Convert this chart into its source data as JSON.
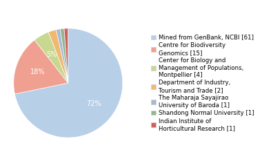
{
  "labels": [
    "Mined from GenBank, NCBI [61]",
    "Centre for Biodiversity\nGenomics [15]",
    "Center for Biology and\nManagement of Populations,\nMontpellier [4]",
    "Department of Industry,\nTourism and Trade [2]",
    "The Maharaja Sayajirao\nUniversity of Baroda [1]",
    "Shandong Normal University [1]",
    "Indian Institute of\nHorticultural Research [1]"
  ],
  "values": [
    61,
    15,
    4,
    2,
    1,
    1,
    1
  ],
  "colors": [
    "#b8cfe8",
    "#f0a090",
    "#c8d890",
    "#f0b870",
    "#a8b8d0",
    "#90b890",
    "#d06060"
  ],
  "background_color": "#ffffff",
  "text_color": "#ffffff",
  "fontsize": 7.0,
  "legend_fontsize": 6.2
}
